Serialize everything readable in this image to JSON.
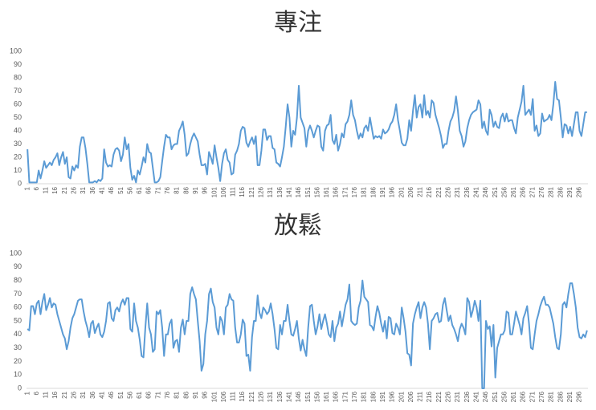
{
  "chart_data": [
    {
      "type": "line",
      "title": "專注",
      "color": "#5b9bd5",
      "ylim": [
        0,
        100
      ],
      "yticks": [
        0,
        10,
        20,
        30,
        40,
        50,
        60,
        70,
        80,
        90,
        100
      ],
      "grid": false,
      "categories": [
        "1",
        null,
        null,
        null,
        null,
        "6",
        null,
        null,
        null,
        null,
        "11",
        null,
        null,
        null,
        null,
        "16",
        null,
        null,
        null,
        null,
        "21",
        null,
        null,
        null,
        null,
        "26",
        null,
        null,
        null,
        null,
        "31",
        null,
        null,
        null,
        null,
        "36",
        null,
        null,
        null,
        null,
        "41",
        null,
        null,
        null,
        null,
        "46",
        null,
        null,
        null,
        null,
        "51",
        null,
        null,
        null,
        null,
        "56",
        null,
        null,
        null,
        null,
        "61",
        null,
        null,
        null,
        null,
        "66",
        null,
        null,
        null,
        null,
        "71",
        null,
        null,
        null,
        null,
        "76",
        null,
        null,
        null,
        null,
        "81",
        null,
        null,
        null,
        null,
        "86",
        null,
        null,
        null,
        null,
        "91",
        null,
        null,
        null,
        null,
        "96",
        null,
        null,
        null,
        null,
        "101",
        null,
        null,
        null,
        null,
        "106",
        null,
        null,
        null,
        null,
        "111",
        null,
        null,
        null,
        null,
        "116",
        null,
        null,
        null,
        null,
        "121",
        null,
        null,
        null,
        null,
        "126",
        null,
        null,
        null,
        null,
        "131",
        null,
        null,
        null,
        null,
        "136",
        null,
        null,
        null,
        null,
        "141",
        null,
        null,
        null,
        null,
        "146",
        null,
        null,
        null,
        null,
        "151",
        null,
        null,
        null,
        null,
        "156",
        null,
        null,
        null,
        null,
        "161",
        null,
        null,
        null,
        null,
        "166",
        null,
        null,
        null,
        null,
        "171",
        null,
        null,
        null,
        null,
        "176",
        null,
        null,
        null,
        null,
        "181",
        null,
        null,
        null,
        null,
        "186",
        null,
        null,
        null,
        null,
        "191",
        null,
        null,
        null,
        null,
        "196",
        null,
        null,
        null,
        null,
        "201",
        null,
        null,
        null,
        null,
        "206",
        null,
        null,
        null,
        null,
        "211",
        null,
        null,
        null,
        null,
        "216",
        null,
        null,
        null,
        null,
        "221",
        null,
        null,
        null,
        null,
        "226",
        null,
        null,
        null,
        null,
        "231",
        null,
        null,
        null,
        null,
        "236",
        null,
        null,
        null,
        null,
        "241",
        null,
        null,
        null,
        null,
        "246",
        null,
        null,
        null,
        null,
        "251",
        null,
        null,
        null,
        null,
        "256",
        null,
        null,
        null,
        null,
        "261",
        null,
        null,
        null,
        null,
        "266",
        null,
        null,
        null,
        null,
        "271",
        null,
        null,
        null,
        null,
        "276",
        null,
        null,
        null,
        null,
        "281",
        null,
        null,
        null,
        null,
        "286",
        null,
        null,
        null,
        null,
        "291",
        null,
        null,
        null,
        null,
        "296",
        null,
        null,
        null,
        null
      ],
      "values": [
        26,
        1,
        1,
        1,
        1,
        1,
        10,
        4,
        10,
        17,
        12,
        14,
        16,
        14,
        18,
        20,
        23,
        14,
        20,
        24,
        15,
        20,
        5,
        4,
        13,
        10,
        14,
        12,
        28,
        35,
        35,
        27,
        15,
        1,
        1,
        1,
        2,
        1,
        3,
        2,
        4,
        26,
        16,
        13,
        14,
        13,
        22,
        26,
        27,
        25,
        17,
        22,
        35,
        26,
        30,
        12,
        3,
        6,
        1,
        10,
        7,
        13,
        20,
        16,
        30,
        24,
        23,
        12,
        1,
        1,
        2,
        5,
        17,
        28,
        37,
        35,
        35,
        26,
        29,
        30,
        30,
        40,
        43,
        47,
        37,
        21,
        23,
        30,
        35,
        38,
        35,
        32,
        22,
        14,
        14,
        15,
        7,
        24,
        20,
        15,
        29,
        20,
        12,
        2,
        15,
        23,
        26,
        18,
        16,
        7,
        8,
        22,
        25,
        30,
        40,
        43,
        42,
        31,
        28,
        32,
        35,
        30,
        36,
        14,
        14,
        25,
        41,
        41,
        33,
        36,
        36,
        27,
        26,
        16,
        15,
        13,
        20,
        28,
        43,
        60,
        50,
        28,
        40,
        37,
        50,
        74,
        50,
        46,
        42,
        28,
        40,
        44,
        40,
        35,
        40,
        44,
        43,
        28,
        25,
        40,
        44,
        45,
        52,
        33,
        30,
        37,
        25,
        30,
        38,
        35,
        45,
        47,
        52,
        63,
        52,
        48,
        40,
        34,
        38,
        35,
        42,
        44,
        40,
        50,
        42,
        34,
        36,
        35,
        36,
        34,
        41,
        38,
        39,
        41,
        45,
        47,
        52,
        60,
        48,
        40,
        31,
        29,
        29,
        34,
        48,
        40,
        55,
        67,
        50,
        58,
        60,
        50,
        67,
        52,
        55,
        50,
        63,
        61,
        52,
        47,
        42,
        36,
        27,
        30,
        30,
        40,
        47,
        50,
        55,
        66,
        55,
        40,
        36,
        28,
        32,
        42,
        48,
        52,
        54,
        55,
        56,
        63,
        60,
        42,
        47,
        40,
        37,
        56,
        52,
        43,
        47,
        43,
        42,
        50,
        53,
        47,
        53,
        47,
        48,
        48,
        42,
        38,
        50,
        56,
        62,
        74,
        52,
        54,
        56,
        52,
        64,
        40,
        44,
        36,
        38,
        53,
        47,
        48,
        49,
        52,
        48,
        60,
        77,
        64,
        63,
        50,
        35,
        45,
        44,
        38,
        43,
        36,
        45,
        54,
        54,
        40,
        36,
        45,
        54,
        54
      ]
    },
    {
      "type": "line",
      "title": "放鬆",
      "color": "#5b9bd5",
      "ylim": [
        0,
        100
      ],
      "yticks": [
        0,
        10,
        20,
        30,
        40,
        50,
        60,
        70,
        80,
        90,
        100
      ],
      "grid": false,
      "categories": [
        "1",
        null,
        null,
        null,
        null,
        "6",
        null,
        null,
        null,
        null,
        "11",
        null,
        null,
        null,
        null,
        "16",
        null,
        null,
        null,
        null,
        "21",
        null,
        null,
        null,
        null,
        "26",
        null,
        null,
        null,
        null,
        "31",
        null,
        null,
        null,
        null,
        "36",
        null,
        null,
        null,
        null,
        "41",
        null,
        null,
        null,
        null,
        "46",
        null,
        null,
        null,
        null,
        "51",
        null,
        null,
        null,
        null,
        "56",
        null,
        null,
        null,
        null,
        "61",
        null,
        null,
        null,
        null,
        "66",
        null,
        null,
        null,
        null,
        "71",
        null,
        null,
        null,
        null,
        "76",
        null,
        null,
        null,
        null,
        "81",
        null,
        null,
        null,
        null,
        "86",
        null,
        null,
        null,
        null,
        "91",
        null,
        null,
        null,
        null,
        "96",
        null,
        null,
        null,
        null,
        "101",
        null,
        null,
        null,
        null,
        "106",
        null,
        null,
        null,
        null,
        "111",
        null,
        null,
        null,
        null,
        "116",
        null,
        null,
        null,
        null,
        "121",
        null,
        null,
        null,
        null,
        "126",
        null,
        null,
        null,
        null,
        "131",
        null,
        null,
        null,
        null,
        "136",
        null,
        null,
        null,
        null,
        "141",
        null,
        null,
        null,
        null,
        "146",
        null,
        null,
        null,
        null,
        "151",
        null,
        null,
        null,
        null,
        "156",
        null,
        null,
        null,
        null,
        "161",
        null,
        null,
        null,
        null,
        "166",
        null,
        null,
        null,
        null,
        "171",
        null,
        null,
        null,
        null,
        "176",
        null,
        null,
        null,
        null,
        "181",
        null,
        null,
        null,
        null,
        "186",
        null,
        null,
        null,
        null,
        "191",
        null,
        null,
        null,
        null,
        "196",
        null,
        null,
        null,
        null,
        "201",
        null,
        null,
        null,
        null,
        "206",
        null,
        null,
        null,
        null,
        "211",
        null,
        null,
        null,
        null,
        "216",
        null,
        null,
        null,
        null,
        "221",
        null,
        null,
        null,
        null,
        "226",
        null,
        null,
        null,
        null,
        "231",
        null,
        null,
        null,
        null,
        "236",
        null,
        null,
        null,
        null,
        "241",
        null,
        null,
        null,
        null,
        "246",
        null,
        null,
        null,
        null,
        "251",
        null,
        null,
        null,
        null,
        "256",
        null,
        null,
        null,
        null,
        "261",
        null,
        null,
        null,
        null,
        "266",
        null,
        null,
        null,
        null,
        "271",
        null,
        null,
        null,
        null,
        "276",
        null,
        null,
        null,
        null,
        "281",
        null,
        null,
        null,
        null,
        "286",
        null,
        null,
        null,
        null,
        "291",
        null,
        null,
        null,
        null,
        "296",
        null,
        null,
        null,
        null
      ],
      "values": [
        44,
        43,
        61,
        61,
        55,
        63,
        65,
        55,
        64,
        70,
        58,
        62,
        67,
        60,
        63,
        62,
        55,
        50,
        45,
        40,
        37,
        29,
        35,
        45,
        52,
        55,
        60,
        65,
        66,
        66,
        57,
        50,
        45,
        38,
        48,
        50,
        41,
        45,
        48,
        40,
        38,
        42,
        50,
        63,
        64,
        52,
        50,
        58,
        60,
        57,
        63,
        66,
        62,
        67,
        67,
        44,
        42,
        63,
        50,
        45,
        36,
        24,
        23,
        45,
        63,
        45,
        40,
        27,
        29,
        57,
        55,
        58,
        45,
        24,
        40,
        40,
        48,
        51,
        30,
        35,
        36,
        27,
        45,
        51,
        40,
        50,
        50,
        70,
        75,
        70,
        66,
        50,
        35,
        13,
        18,
        40,
        50,
        70,
        74,
        64,
        60,
        45,
        40,
        53,
        50,
        40,
        60,
        62,
        70,
        66,
        65,
        45,
        34,
        34,
        40,
        51,
        48,
        24,
        25,
        13,
        38,
        50,
        50,
        69,
        56,
        52,
        60,
        58,
        55,
        57,
        63,
        55,
        44,
        30,
        29,
        47,
        40,
        50,
        50,
        62,
        50,
        40,
        39,
        44,
        50,
        37,
        28,
        36,
        29,
        24,
        45,
        61,
        62,
        50,
        40,
        46,
        55,
        44,
        50,
        55,
        48,
        40,
        38,
        50,
        35,
        45,
        48,
        57,
        46,
        54,
        62,
        66,
        77,
        50,
        48,
        47,
        48,
        60,
        65,
        80,
        68,
        66,
        64,
        47,
        46,
        43,
        53,
        61,
        56,
        48,
        42,
        50,
        37,
        53,
        52,
        41,
        40,
        48,
        45,
        40,
        60,
        52,
        42,
        26,
        25,
        17,
        48,
        55,
        60,
        64,
        52,
        60,
        64,
        60,
        48,
        29,
        50,
        52,
        55,
        56,
        49,
        50,
        62,
        67,
        58,
        50,
        54,
        47,
        44,
        40,
        35,
        44,
        48,
        45,
        40,
        67,
        64,
        53,
        58,
        65,
        60,
        50,
        65,
        0,
        0,
        50,
        44,
        46,
        31,
        47,
        8,
        30,
        35,
        40,
        40,
        43,
        57,
        56,
        40,
        40,
        48,
        57,
        52,
        47,
        40,
        52,
        56,
        61,
        48,
        30,
        29,
        40,
        50,
        55,
        61,
        65,
        68,
        62,
        62,
        60,
        54,
        48,
        38,
        30,
        29,
        40,
        62,
        64,
        60,
        70,
        78,
        78,
        70,
        60,
        45,
        38,
        37,
        40,
        38,
        43
      ]
    }
  ]
}
